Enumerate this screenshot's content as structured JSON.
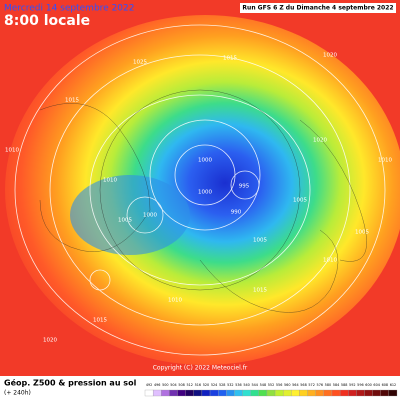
{
  "header": {
    "date": "Mercredi 14 septembre 2022",
    "time": "8:00 locale",
    "run": "Run GFS 6 Z du Dimanche 4 septembre 2022"
  },
  "footer": {
    "title": "Géop. Z500 & pression au sol",
    "forecast": "(+ 240h)",
    "copyright": "Copyright (C) 2022 Meteociel.fr"
  },
  "legend": {
    "ticks": [
      492,
      496,
      500,
      504,
      508,
      512,
      516,
      520,
      524,
      528,
      532,
      536,
      540,
      544,
      548,
      552,
      556,
      560,
      564,
      568,
      572,
      576,
      580,
      584,
      588,
      592,
      596,
      600,
      604,
      608,
      612
    ]
  },
  "isobar_labels": [
    1025,
    1015,
    1010,
    1010,
    1005,
    1015,
    1020,
    1000,
    1000,
    995,
    990,
    1005,
    1010,
    1015,
    1020,
    1010,
    1005,
    1015,
    1020,
    1000,
    1005,
    1010
  ]
}
